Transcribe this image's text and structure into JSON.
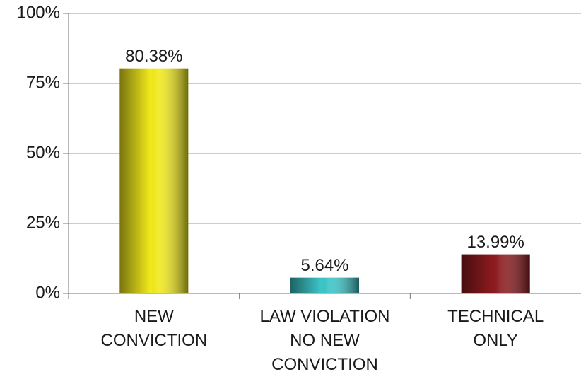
{
  "chart_data": {
    "type": "bar",
    "categories": [
      "NEW\nCONVICTION",
      "LAW VIOLATION\nNO NEW\nCONVICTION",
      "TECHNICAL\nONLY"
    ],
    "values": [
      80.38,
      5.64,
      13.99
    ],
    "value_labels": [
      "80.38%",
      "5.64%",
      "13.99%"
    ],
    "colors": [
      "#f2ea1c",
      "#3cc6c8",
      "#8c1a1e"
    ],
    "ylim": [
      0,
      100
    ],
    "yticks": [
      {
        "value": 0,
        "label": "0%"
      },
      {
        "value": 25,
        "label": "25%"
      },
      {
        "value": 50,
        "label": "50%"
      },
      {
        "value": 75,
        "label": "75%"
      },
      {
        "value": 100,
        "label": "100%"
      }
    ],
    "grid": true
  }
}
